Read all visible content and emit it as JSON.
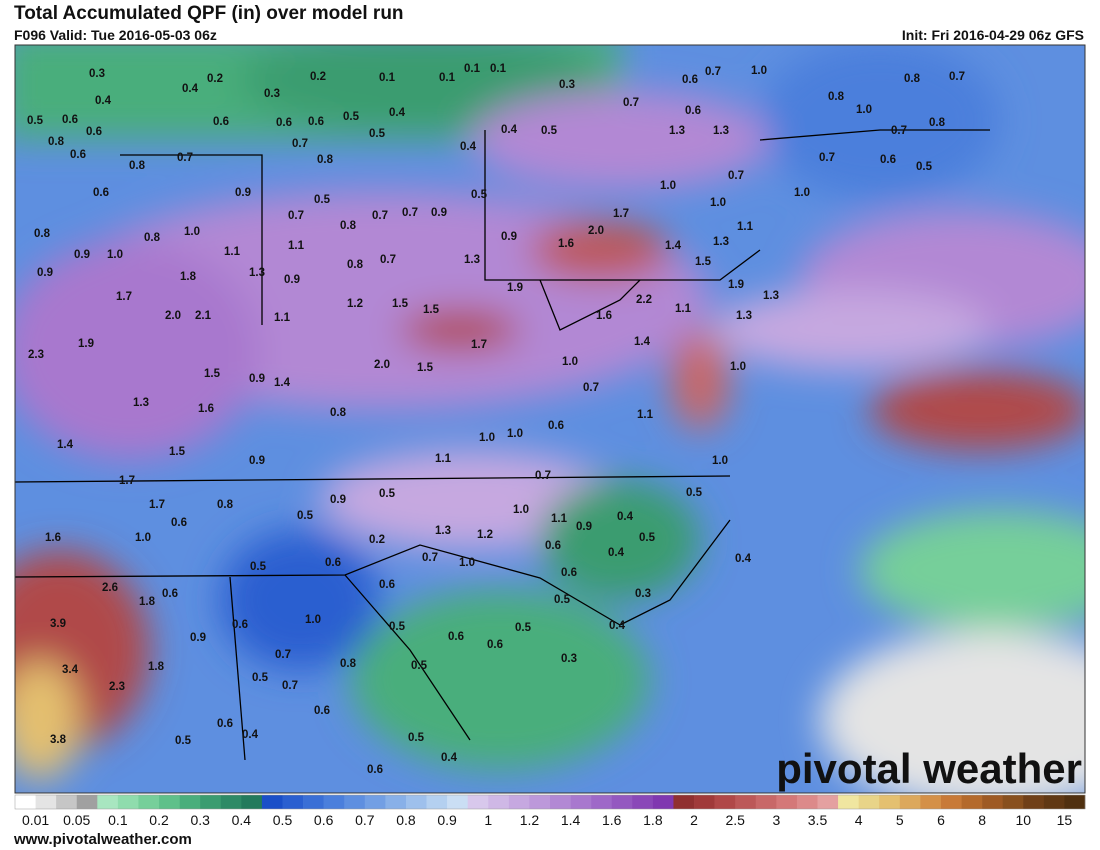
{
  "header": {
    "title": "Total Accumulated QPF (in) over model run",
    "valid": "F096 Valid: Tue 2016-05-03 06z",
    "init": "Init: Fri 2016-04-29 06z GFS"
  },
  "map": {
    "labels": [
      "0.3",
      "0.2",
      "0.2",
      "0.1",
      "0.1",
      "0.1",
      "0.1",
      "0.4",
      "0.3",
      "0.4",
      "0.3",
      "0.6",
      "0.7",
      "1.0",
      "0.8",
      "0.7",
      "0.5",
      "0.6",
      "0.6",
      "0.6",
      "0.6",
      "0.5",
      "0.4",
      "0.7",
      "0.6",
      "0.8",
      "1.0",
      "0.8",
      "0.6",
      "0.7",
      "0.5",
      "0.4",
      "0.5",
      "1.3",
      "1.3",
      "0.7",
      "0.8",
      "0.6",
      "0.8",
      "0.7",
      "0.8",
      "0.4",
      "0.7",
      "0.6",
      "0.5",
      "0.6",
      "0.9",
      "0.5",
      "0.5",
      "1.0",
      "0.7",
      "1.0",
      "1.0",
      "0.7",
      "0.8",
      "0.7",
      "0.7",
      "0.9",
      "1.7",
      "0.8",
      "0.8",
      "1.0",
      "2.0",
      "1.1",
      "0.9",
      "1.6",
      "1.4",
      "1.3",
      "0.9",
      "1.0",
      "1.1",
      "1.1",
      "0.8",
      "0.7",
      "1.3",
      "1.5",
      "0.9",
      "1.3",
      "0.9",
      "1.8",
      "1.9",
      "1.9",
      "1.3",
      "1.7",
      "1.2",
      "1.5",
      "1.5",
      "2.2",
      "1.6",
      "1.1",
      "1.3",
      "2.0",
      "2.1",
      "1.1",
      "1.7",
      "1.9",
      "2.3",
      "1.4",
      "1.0",
      "1.0",
      "2.0",
      "1.5",
      "1.5",
      "0.9",
      "1.4",
      "0.7",
      "1.3",
      "1.6",
      "0.8",
      "1.1",
      "0.6",
      "1.0",
      "1.0",
      "1.4",
      "1.5",
      "0.9",
      "1.1",
      "1.0",
      "0.7",
      "1.7",
      "1.7",
      "0.8",
      "0.9",
      "0.5",
      "0.5",
      "0.6",
      "0.5",
      "1.0",
      "1.1",
      "0.9",
      "0.4",
      "1.6",
      "1.0",
      "0.2",
      "1.3",
      "1.2",
      "0.5",
      "0.6",
      "0.7",
      "1.0",
      "0.4",
      "0.4",
      "0.5",
      "0.6",
      "0.6",
      "2.6",
      "0.6",
      "1.8",
      "0.6",
      "0.5",
      "0.3",
      "3.9",
      "0.6",
      "1.0",
      "0.4",
      "0.9",
      "0.5",
      "0.6",
      "0.5",
      "0.6",
      "0.7",
      "0.3",
      "3.4",
      "1.8",
      "0.8",
      "0.5",
      "0.5",
      "0.7",
      "2.3",
      "0.6",
      "0.6",
      "0.4",
      "3.8",
      "0.5",
      "0.5",
      "0.4",
      "0.6"
    ]
  },
  "watermark": "pivotal weather",
  "colorbar": {
    "labels": [
      "0.01",
      "0.05",
      "0.1",
      "0.2",
      "0.3",
      "0.4",
      "0.5",
      "0.6",
      "0.7",
      "0.8",
      "0.9",
      "1",
      "1.2",
      "1.4",
      "1.6",
      "1.8",
      "2",
      "2.5",
      "3",
      "3.5",
      "4",
      "5",
      "6",
      "8",
      "10",
      "15"
    ],
    "colors": [
      "#ffffff",
      "#e4e4e4",
      "#c6c6c6",
      "#a0a0a0",
      "#a8e6c0",
      "#8fdcad",
      "#76cf9a",
      "#5fc08a",
      "#4aae7c",
      "#3b9c70",
      "#2e8a66",
      "#237a5c",
      "#1a4fc8",
      "#2a5fd0",
      "#3a6fd6",
      "#4b7fdc",
      "#5e8fe0",
      "#729fe4",
      "#88b0e8",
      "#9ec0ec",
      "#b4d0f0",
      "#cadef4",
      "#d8c8ec",
      "#cfb8e6",
      "#c6a8e0",
      "#bc98da",
      "#b288d4",
      "#a878ce",
      "#9e68c8",
      "#9458c0",
      "#8a48b8",
      "#8038b0",
      "#903030",
      "#a03a3a",
      "#b04848",
      "#bc5858",
      "#c86868",
      "#d47878",
      "#dc8a8a",
      "#e4a0a0",
      "#f0e6a0",
      "#e8d488",
      "#e4c070",
      "#dca85c",
      "#d49048",
      "#c87a38",
      "#b46a2c",
      "#9e5a24",
      "#88501e",
      "#704018",
      "#603814",
      "#503010"
    ]
  },
  "footer": "www.pivotalweather.com"
}
